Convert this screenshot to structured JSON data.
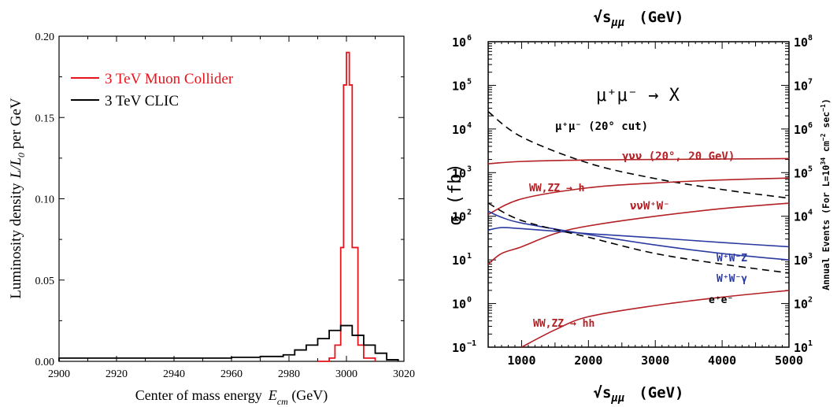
{
  "chart_data": [
    {
      "type": "line",
      "xlabel": "Center of mass energy",
      "xlabel_symbol": "E",
      "xlabel_sub": "cm",
      "xlabel_unit": " (GeV)",
      "ylabel": "Luminosity density",
      "ylabel_symbol": "L/L",
      "ylabel_sub": "0",
      "ylabel_unit": " per GeV",
      "xlim": [
        2900,
        3020
      ],
      "ylim": [
        0,
        0.2
      ],
      "xticks": [
        "2900",
        "2920",
        "2940",
        "2960",
        "2980",
        "3000",
        "3020"
      ],
      "yticks": [
        "0.00",
        "0.05",
        "0.10",
        "0.15",
        "0.20"
      ],
      "legend_position": "top-left",
      "series": [
        {
          "name": "3 TeV Muon Collider",
          "color": "#e8141c",
          "step": true,
          "x": [
            2990,
            2994,
            2996,
            2998,
            2999,
            3000,
            3001,
            3002,
            3004,
            3006,
            3010
          ],
          "y": [
            0,
            0.002,
            0.01,
            0.07,
            0.17,
            0.19,
            0.17,
            0.07,
            0.01,
            0.002,
            0
          ]
        },
        {
          "name": "3 TeV CLIC",
          "color": "#000000",
          "step": true,
          "x": [
            2900,
            2960,
            2970,
            2978,
            2982,
            2986,
            2990,
            2994,
            2998,
            3002,
            3006,
            3010,
            3014,
            3018
          ],
          "y": [
            0.002,
            0.0025,
            0.003,
            0.004,
            0.007,
            0.01,
            0.014,
            0.019,
            0.022,
            0.016,
            0.01,
            0.005,
            0.001,
            0.0
          ]
        }
      ]
    },
    {
      "type": "line",
      "title": "√s",
      "title_sub": "μμ",
      "title_unit": "(GeV)",
      "xlabel": "√s",
      "xlabel_sub": "μμ",
      "xlabel_unit": "(GeV)",
      "ylabel": "σ (fb)",
      "ylabel_right": "Annual Events (For L=10",
      "ylabel_right_sup": "34",
      "ylabel_right_unit_a": " cm",
      "ylabel_right_sup2": "−2",
      "ylabel_right_unit_b": " sec",
      "ylabel_right_sup3": "−1",
      "ylabel_right_close": ")",
      "xlim": [
        500,
        5000
      ],
      "ylim_log": [
        -1,
        6
      ],
      "y_scale": "log",
      "xticks": [
        "1000",
        "2000",
        "3000",
        "4000",
        "5000"
      ],
      "yticks_left": [
        {
          "base": "10",
          "exp": "−1"
        },
        {
          "base": "10",
          "exp": "0"
        },
        {
          "base": "10",
          "exp": "1"
        },
        {
          "base": "10",
          "exp": "2"
        },
        {
          "base": "10",
          "exp": "3"
        },
        {
          "base": "10",
          "exp": "4"
        },
        {
          "base": "10",
          "exp": "5"
        },
        {
          "base": "10",
          "exp": "6"
        }
      ],
      "yticks_right": [
        {
          "base": "10",
          "exp": "1"
        },
        {
          "base": "10",
          "exp": "2"
        },
        {
          "base": "10",
          "exp": "3"
        },
        {
          "base": "10",
          "exp": "4"
        },
        {
          "base": "10",
          "exp": "5"
        },
        {
          "base": "10",
          "exp": "6"
        },
        {
          "base": "10",
          "exp": "7"
        },
        {
          "base": "10",
          "exp": "8"
        }
      ],
      "process": "μ⁺μ⁻ → X",
      "series": [
        {
          "id": "mumu",
          "label": "μ⁺μ⁻ (20° cut)",
          "color": "#000000",
          "dashed": true,
          "x": [
            500,
            1000,
            2000,
            3000,
            4000,
            5000
          ],
          "y": [
            25000,
            6600,
            1650,
            730,
            410,
            260
          ]
        },
        {
          "id": "gnn",
          "label": "γνν (20°, 20 GeV)",
          "color": "#b32025",
          "dashed": false,
          "x": [
            500,
            1000,
            2000,
            3000,
            4000,
            5000
          ],
          "y": [
            1600,
            1800,
            1950,
            2000,
            2050,
            2100
          ]
        },
        {
          "id": "wwzzh",
          "label": "WW,ZZ → h",
          "color": "#b32025",
          "dashed": false,
          "x": [
            500,
            1000,
            2000,
            3000,
            4000,
            5000
          ],
          "y": [
            110,
            250,
            450,
            580,
            680,
            750
          ]
        },
        {
          "id": "nnww",
          "label": "ννW⁺W⁻",
          "color": "#b32025",
          "dashed": false,
          "x": [
            500,
            700,
            1000,
            1500,
            2000,
            3000,
            4000,
            5000
          ],
          "y": [
            8,
            14,
            20,
            40,
            60,
            100,
            150,
            200
          ]
        },
        {
          "id": "wwz",
          "label": "W⁺W⁻Z",
          "color": "#2b3aa0",
          "dashed": false,
          "x": [
            500,
            700,
            1000,
            2000,
            3000,
            4000,
            5000
          ],
          "y": [
            48,
            55,
            52,
            40,
            32,
            25,
            20
          ]
        },
        {
          "id": "wwg",
          "label": "W⁺W⁻γ",
          "color": "#2b3aa0",
          "dashed": false,
          "x": [
            500,
            700,
            1000,
            2000,
            3000,
            4000,
            5000
          ],
          "y": [
            130,
            95,
            70,
            38,
            22,
            14,
            10
          ]
        },
        {
          "id": "ee",
          "label": "e⁺e⁻",
          "color": "#000000",
          "dashed": true,
          "x": [
            500,
            1000,
            2000,
            3000,
            4000,
            5000
          ],
          "y": [
            200,
            80,
            33,
            14,
            8,
            5
          ]
        },
        {
          "id": "wwzzhh",
          "label": "WW,ZZ → hh",
          "color": "#b32025",
          "dashed": false,
          "x": [
            1000,
            1500,
            2000,
            3000,
            4000,
            5000
          ],
          "y": [
            0.1,
            0.25,
            0.5,
            0.9,
            1.4,
            2.0
          ]
        }
      ]
    }
  ]
}
